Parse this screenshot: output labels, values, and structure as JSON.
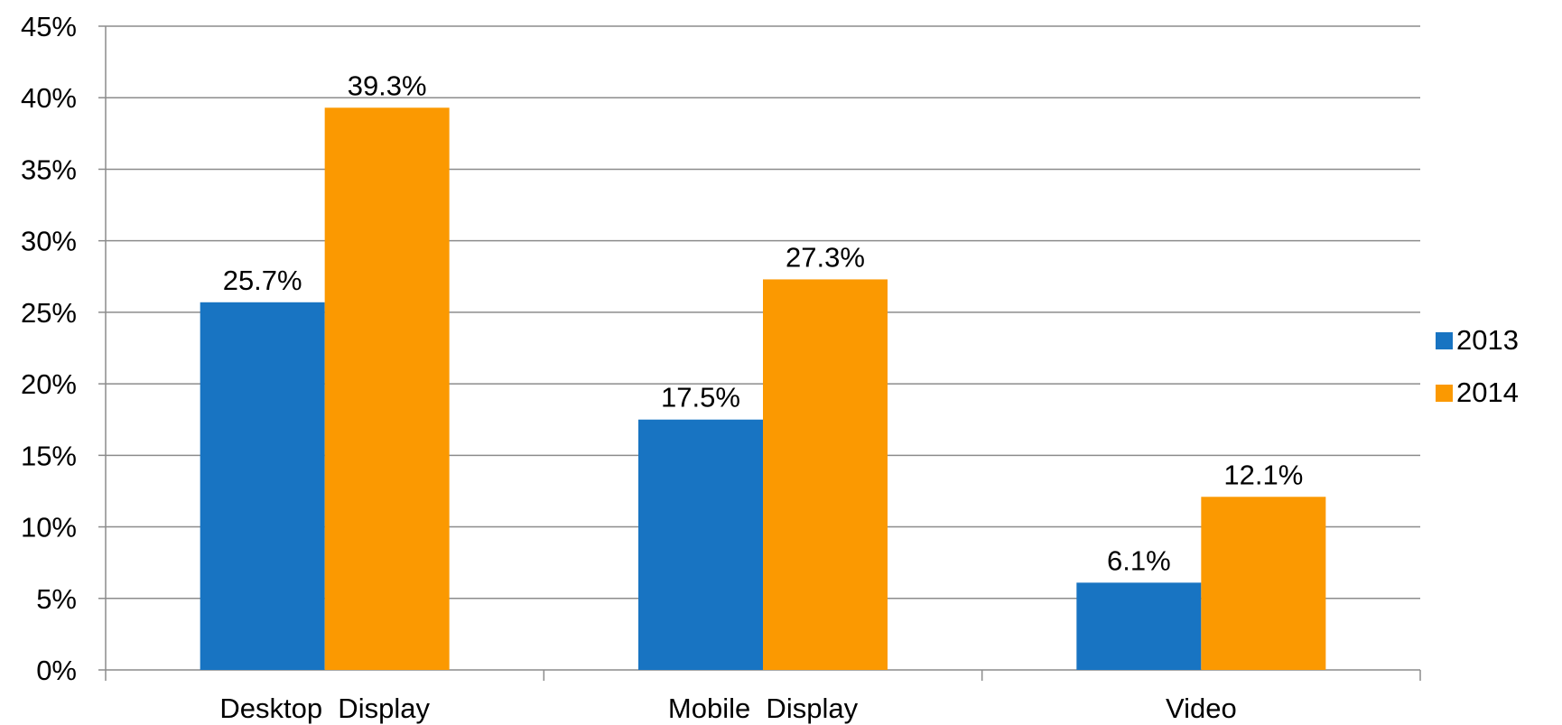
{
  "chart_data": {
    "type": "bar",
    "categories": [
      "Desktop  Display",
      "Mobile  Display",
      "Video"
    ],
    "series": [
      {
        "name": "2013",
        "values": [
          25.7,
          17.5,
          6.1
        ],
        "labels": [
          "25.7%",
          "17.5%",
          "6.1%"
        ],
        "color": "#1874c2"
      },
      {
        "name": "2014",
        "values": [
          39.3,
          27.3,
          12.1
        ],
        "labels": [
          "39.3%",
          "27.3%",
          "12.1%"
        ],
        "color": "#fb9901"
      }
    ],
    "ylim": [
      0,
      45
    ],
    "yticks": [
      0,
      5,
      10,
      15,
      20,
      25,
      30,
      35,
      40,
      45
    ],
    "ytick_labels": [
      "0%",
      "5%",
      "10%",
      "15%",
      "20%",
      "25%",
      "30%",
      "35%",
      "40%",
      "45%"
    ],
    "grid": true,
    "legend": "right"
  }
}
